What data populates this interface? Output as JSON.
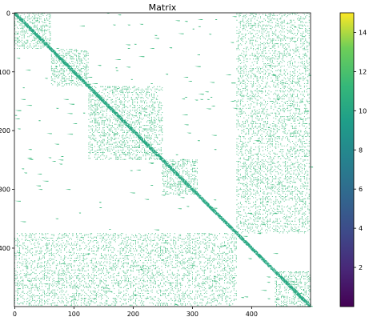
{
  "chart_data": {
    "type": "heatmap",
    "title": "Matrix",
    "matrix_size": 500,
    "x_ticks": [
      0,
      100,
      200,
      300,
      400
    ],
    "y_ticks": [
      0,
      100,
      200,
      300,
      400
    ],
    "xlim": [
      0,
      499
    ],
    "ylim": [
      499,
      0
    ],
    "colorbar": {
      "colormap": "viridis",
      "min": 0,
      "max": 15,
      "ticks": [
        2,
        4,
        6,
        8,
        10,
        12,
        14
      ]
    },
    "background_color": "#ffffff",
    "nonzero_value_typical": 10,
    "blocks": [
      {
        "range": [
          0,
          62
        ],
        "density": 0.4
      },
      {
        "range": [
          62,
          125
        ],
        "density": 0.38
      },
      {
        "range": [
          125,
          250
        ],
        "density": 0.34
      },
      {
        "range": [
          250,
          310
        ],
        "density": 0.36
      },
      {
        "range": [
          440,
          499
        ],
        "density": 0.4
      }
    ],
    "offdiagonal_regions": [
      {
        "rows": [
          0,
          375
        ],
        "cols": [
          375,
          499
        ],
        "density": 0.28
      },
      {
        "rows": [
          375,
          499
        ],
        "cols": [
          0,
          375
        ],
        "density": 0.28
      }
    ],
    "diagonal_band_halfwidth": 3,
    "diagonal_band_value": 9
  }
}
